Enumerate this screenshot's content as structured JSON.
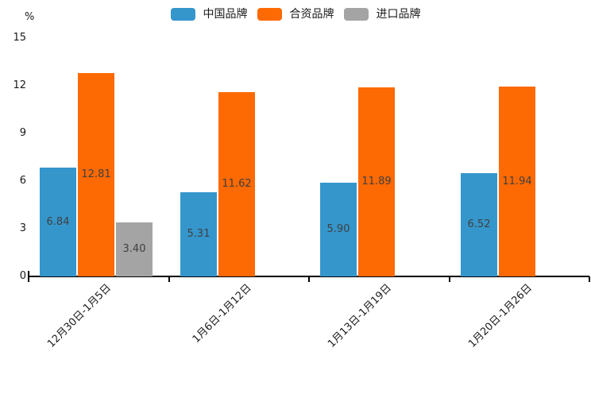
{
  "chart_data": {
    "type": "bar",
    "unit_label": "%",
    "categories": [
      "12月30日-1月5日",
      "1月6日-1月12日",
      "1月13日-1月19日",
      "1月20日-1月26日"
    ],
    "series": [
      {
        "name": "中国品牌",
        "color": "#3596cc",
        "values": [
          6.84,
          5.31,
          5.9,
          6.52
        ],
        "labels": [
          "6.84",
          "5.31",
          "5.90",
          "6.52"
        ]
      },
      {
        "name": "合资品牌",
        "color": "#fd6903",
        "values": [
          12.81,
          11.62,
          11.89,
          11.94
        ],
        "labels": [
          "12.81",
          "11.62",
          "11.89",
          "11.94"
        ]
      },
      {
        "name": "进口品牌",
        "color": "#a4a4a4",
        "values": [
          3.4,
          null,
          null,
          null
        ],
        "labels": [
          "3.40",
          null,
          null,
          null
        ]
      }
    ],
    "ylim": [
      0,
      15
    ],
    "yticks": [
      0,
      3,
      6,
      9,
      12,
      15
    ],
    "grid": false,
    "legend_position": "top",
    "value_label_position": "center-of-bar"
  }
}
